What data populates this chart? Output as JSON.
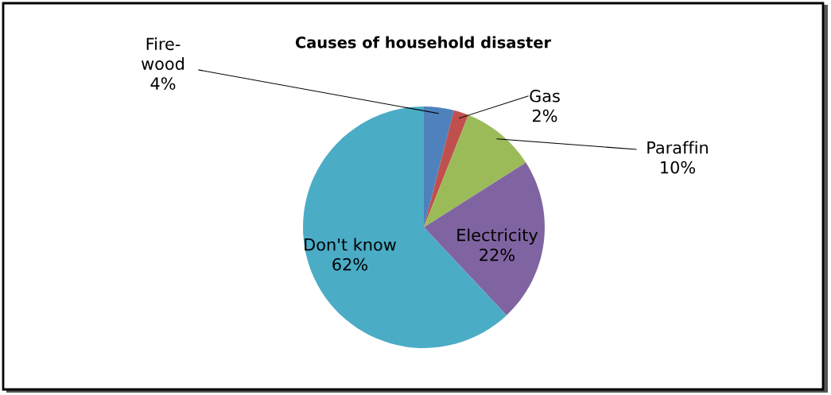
{
  "chart_data": {
    "type": "pie",
    "title": "Causes of household disaster",
    "categories": [
      "Fire-\nwood",
      "Gas",
      "Paraffin",
      "Electricity",
      "Don't know"
    ],
    "values": [
      4,
      2,
      10,
      22,
      62
    ],
    "colors": [
      "#4f81bd",
      "#c0504d",
      "#9bbb59",
      "#8064a2",
      "#4bacc6"
    ],
    "value_labels": [
      "4%",
      "2%",
      "10%",
      "22%",
      "62%"
    ],
    "legend": false
  }
}
